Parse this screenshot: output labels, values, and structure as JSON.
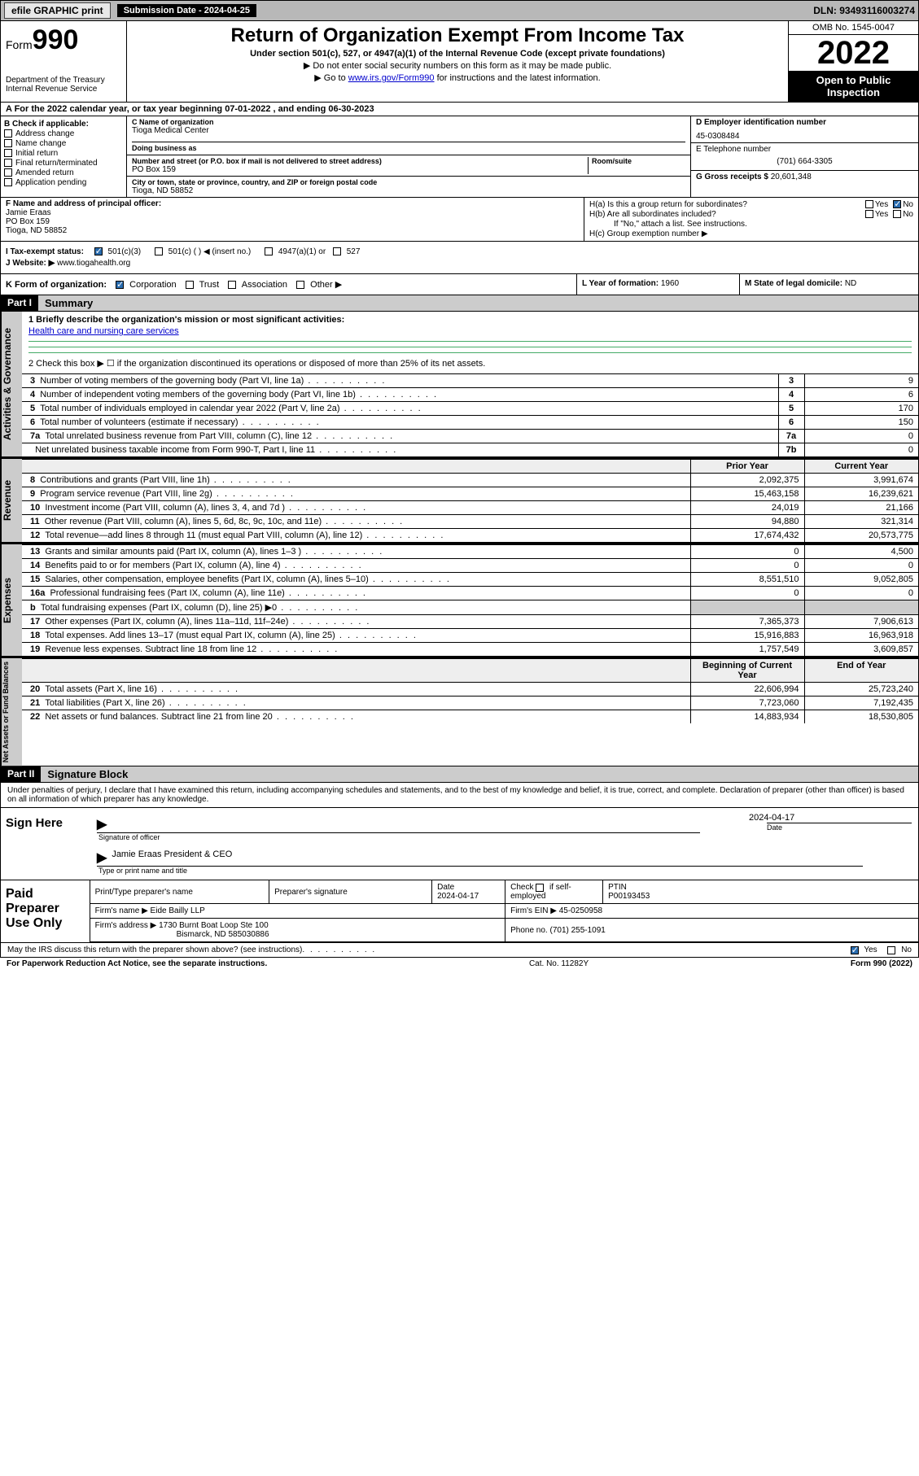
{
  "topbar": {
    "efile": "efile GRAPHIC print",
    "submission_label": "Submission Date - 2024-04-25",
    "dln": "DLN: 93493116003274"
  },
  "header": {
    "form_label": "Form",
    "form_number": "990",
    "dept": "Department of the Treasury",
    "irs": "Internal Revenue Service",
    "title": "Return of Organization Exempt From Income Tax",
    "subtitle": "Under section 501(c), 527, or 4947(a)(1) of the Internal Revenue Code (except private foundations)",
    "note1": "▶ Do not enter social security numbers on this form as it may be made public.",
    "note2_pre": "▶ Go to ",
    "note2_link": "www.irs.gov/Form990",
    "note2_post": " for instructions and the latest information.",
    "omb": "OMB No. 1545-0047",
    "year": "2022",
    "inspection": "Open to Public Inspection"
  },
  "lineA": "A For the 2022 calendar year, or tax year beginning 07-01-2022    , and ending 06-30-2023",
  "B": {
    "label": "B Check if applicable:",
    "opts": [
      "Address change",
      "Name change",
      "Initial return",
      "Final return/terminated",
      "Amended return",
      "Application pending"
    ]
  },
  "C": {
    "name_lbl": "C Name of organization",
    "name": "Tioga Medical Center",
    "dba_lbl": "Doing business as",
    "dba": "",
    "addr_lbl": "Number and street (or P.O. box if mail is not delivered to street address)",
    "room_lbl": "Room/suite",
    "addr": "PO Box 159",
    "city_lbl": "City or town, state or province, country, and ZIP or foreign postal code",
    "city": "Tioga, ND  58852"
  },
  "D": {
    "lbl": "D Employer identification number",
    "val": "45-0308484"
  },
  "E": {
    "lbl": "E Telephone number",
    "val": "(701) 664-3305"
  },
  "G": {
    "lbl": "G Gross receipts $",
    "val": "20,601,348"
  },
  "F": {
    "lbl": "F  Name and address of principal officer:",
    "name": "Jamie Eraas",
    "addr1": "PO Box 159",
    "addr2": "Tioga, ND  58852"
  },
  "H": {
    "a": "H(a)  Is this a group return for subordinates?",
    "b": "H(b)  Are all subordinates included?",
    "b_note": "If \"No,\" attach a list. See instructions.",
    "c": "H(c)  Group exemption number ▶",
    "yes": "Yes",
    "no": "No"
  },
  "I": {
    "lbl": "I    Tax-exempt status:",
    "opts": [
      "501(c)(3)",
      "501(c) (  ) ◀ (insert no.)",
      "4947(a)(1) or",
      "527"
    ]
  },
  "J": {
    "lbl": "J   Website: ▶",
    "val": "www.tiogahealth.org"
  },
  "K": {
    "lbl": "K Form of organization:",
    "opts": [
      "Corporation",
      "Trust",
      "Association",
      "Other ▶"
    ],
    "L_lbl": "L Year of formation:",
    "L_val": "1960",
    "M_lbl": "M State of legal domicile:",
    "M_val": "ND"
  },
  "partI": {
    "hdr": "Part I",
    "title": "Summary"
  },
  "summary": {
    "q1_lbl": "1   Briefly describe the organization's mission or most significant activities:",
    "q1_val": "Health care and nursing care services",
    "q2": "2   Check this box ▶ ☐  if the organization discontinued its operations or disposed of more than 25% of its net assets.",
    "rows_single": [
      {
        "n": "3",
        "t": "Number of voting members of the governing body (Part VI, line 1a)",
        "box": "3",
        "v": "9"
      },
      {
        "n": "4",
        "t": "Number of independent voting members of the governing body (Part VI, line 1b)",
        "box": "4",
        "v": "6"
      },
      {
        "n": "5",
        "t": "Total number of individuals employed in calendar year 2022 (Part V, line 2a)",
        "box": "5",
        "v": "170"
      },
      {
        "n": "6",
        "t": "Total number of volunteers (estimate if necessary)",
        "box": "6",
        "v": "150"
      },
      {
        "n": "7a",
        "t": "Total unrelated business revenue from Part VIII, column (C), line 12",
        "box": "7a",
        "v": "0"
      },
      {
        "n": "",
        "t": "Net unrelated business taxable income from Form 990-T, Part I, line 11",
        "box": "7b",
        "v": "0"
      }
    ],
    "col_prior": "Prior Year",
    "col_current": "Current Year",
    "revenue": [
      {
        "n": "8",
        "t": "Contributions and grants (Part VIII, line 1h)",
        "p": "2,092,375",
        "c": "3,991,674"
      },
      {
        "n": "9",
        "t": "Program service revenue (Part VIII, line 2g)",
        "p": "15,463,158",
        "c": "16,239,621"
      },
      {
        "n": "10",
        "t": "Investment income (Part VIII, column (A), lines 3, 4, and 7d )",
        "p": "24,019",
        "c": "21,166"
      },
      {
        "n": "11",
        "t": "Other revenue (Part VIII, column (A), lines 5, 6d, 8c, 9c, 10c, and 11e)",
        "p": "94,880",
        "c": "321,314"
      },
      {
        "n": "12",
        "t": "Total revenue—add lines 8 through 11 (must equal Part VIII, column (A), line 12)",
        "p": "17,674,432",
        "c": "20,573,775"
      }
    ],
    "expenses": [
      {
        "n": "13",
        "t": "Grants and similar amounts paid (Part IX, column (A), lines 1–3 )",
        "p": "0",
        "c": "4,500"
      },
      {
        "n": "14",
        "t": "Benefits paid to or for members (Part IX, column (A), line 4)",
        "p": "0",
        "c": "0"
      },
      {
        "n": "15",
        "t": "Salaries, other compensation, employee benefits (Part IX, column (A), lines 5–10)",
        "p": "8,551,510",
        "c": "9,052,805"
      },
      {
        "n": "16a",
        "t": "Professional fundraising fees (Part IX, column (A), line 11e)",
        "p": "0",
        "c": "0"
      },
      {
        "n": "b",
        "t": "Total fundraising expenses (Part IX, column (D), line 25) ▶0",
        "p": "",
        "c": "",
        "shade": true
      },
      {
        "n": "17",
        "t": "Other expenses (Part IX, column (A), lines 11a–11d, 11f–24e)",
        "p": "7,365,373",
        "c": "7,906,613"
      },
      {
        "n": "18",
        "t": "Total expenses. Add lines 13–17 (must equal Part IX, column (A), line 25)",
        "p": "15,916,883",
        "c": "16,963,918"
      },
      {
        "n": "19",
        "t": "Revenue less expenses. Subtract line 18 from line 12",
        "p": "1,757,549",
        "c": "3,609,857"
      }
    ],
    "col_begin": "Beginning of Current Year",
    "col_end": "End of Year",
    "netassets": [
      {
        "n": "20",
        "t": "Total assets (Part X, line 16)",
        "p": "22,606,994",
        "c": "25,723,240"
      },
      {
        "n": "21",
        "t": "Total liabilities (Part X, line 26)",
        "p": "7,723,060",
        "c": "7,192,435"
      },
      {
        "n": "22",
        "t": "Net assets or fund balances. Subtract line 21 from line 20",
        "p": "14,883,934",
        "c": "18,530,805"
      }
    ],
    "side_gov": "Activities & Governance",
    "side_rev": "Revenue",
    "side_exp": "Expenses",
    "side_net": "Net Assets or Fund Balances"
  },
  "partII": {
    "hdr": "Part II",
    "title": "Signature Block"
  },
  "sig": {
    "intro": "Under penalties of perjury, I declare that I have examined this return, including accompanying schedules and statements, and to the best of my knowledge and belief, it is true, correct, and complete. Declaration of preparer (other than officer) is based on all information of which preparer has any knowledge.",
    "sign_here": "Sign Here",
    "sig_officer_lbl": "Signature of officer",
    "date": "2024-04-17",
    "date_lbl": "Date",
    "name_title": "Jamie Eraas  President & CEO",
    "name_title_lbl": "Type or print name and title"
  },
  "paid": {
    "lbl": "Paid Preparer Use Only",
    "h1": "Print/Type preparer's name",
    "h2": "Preparer's signature",
    "h3": "Date",
    "date": "2024-04-17",
    "h4_pre": "Check",
    "h4_post": "if self-employed",
    "h5": "PTIN",
    "ptin": "P00193453",
    "firm_lbl": "Firm's name    ▶",
    "firm": "Eide Bailly LLP",
    "ein_lbl": "Firm's EIN ▶",
    "ein": "45-0250958",
    "addr_lbl": "Firm's address ▶",
    "addr1": "1730 Burnt Boat Loop Ste 100",
    "addr2": "Bismarck, ND  585030886",
    "phone_lbl": "Phone no.",
    "phone": "(701) 255-1091"
  },
  "footer": {
    "discuss": "May the IRS discuss this return with the preparer shown above? (see instructions)",
    "yes": "Yes",
    "no": "No",
    "pra": "For Paperwork Reduction Act Notice, see the separate instructions.",
    "cat": "Cat. No. 11282Y",
    "form": "Form 990 (2022)"
  }
}
